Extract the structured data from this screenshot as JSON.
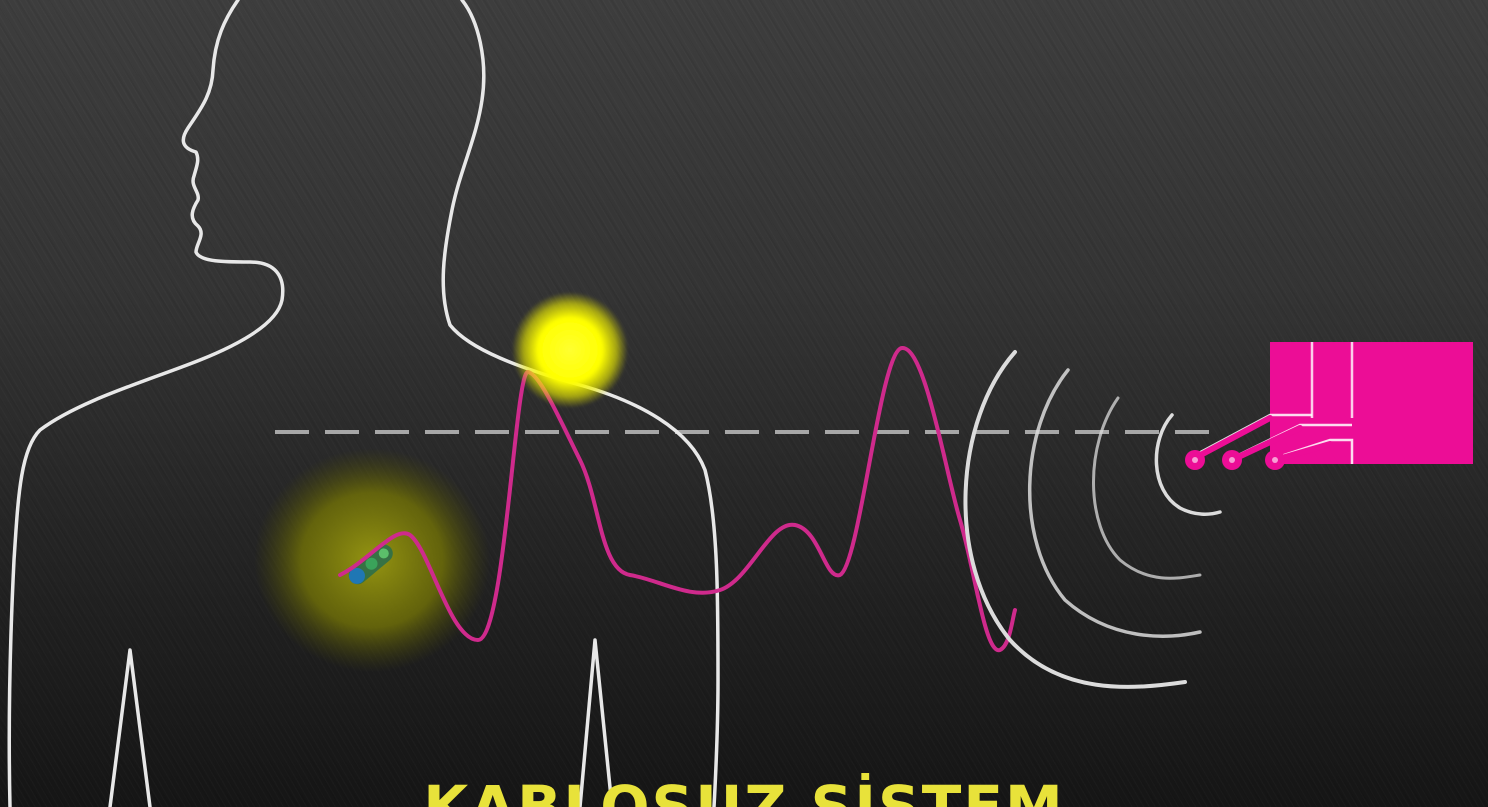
{
  "caption": {
    "text": "KABLOSUZ SİSTEM"
  },
  "colors": {
    "background_top": "#3d3d3d",
    "background_bottom": "#151515",
    "outline": "#e8e8e8",
    "signal_wave": "#cf2a8c",
    "receiver": "#ec0d96",
    "glow_spot": "#ffff00",
    "implant_glow": "#8a8a0a",
    "caption_text": "#e8e23a",
    "dashed_line": "#bdbdbd"
  },
  "icons": {
    "person": "human-silhouette",
    "implant": "implant-device",
    "receiver": "receiver-device",
    "signal": "wireless-waves"
  }
}
